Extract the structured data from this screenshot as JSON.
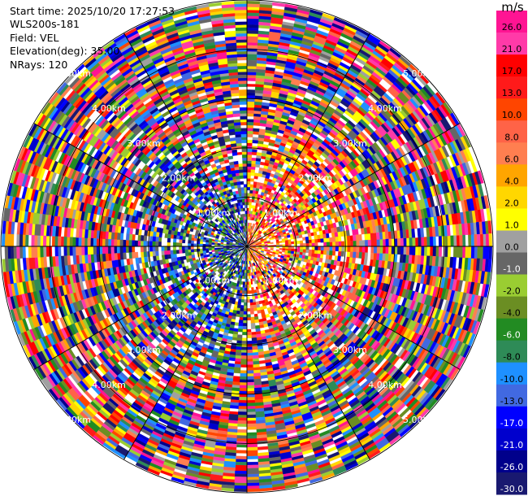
{
  "info": {
    "start_time": "Start time: 2025/10/20 17:27:53",
    "station": "WLS200s-181",
    "field": "Field: VEL",
    "elevation": "Elevation(deg): 35.00",
    "nrays": "NRays: 120"
  },
  "chart_data": {
    "type": "heatmap",
    "projection": "polar-ppi",
    "field": "VEL",
    "units": "m/s",
    "nrays": 120,
    "max_range_km": 5.0,
    "range_rings_km": [
      1.0,
      2.0,
      3.0,
      4.0,
      5.0
    ],
    "ring_labels": [
      "1.00km",
      "2.00km",
      "3.00km",
      "4.00km",
      "5.00km"
    ],
    "colorbar": {
      "title": "m/s",
      "ticks": [
        "26.0",
        "21.0",
        "17.0",
        "13.0",
        "10.0",
        "8.0",
        "6.0",
        "4.0",
        "2.0",
        "1.0",
        "0.0",
        "-1.0",
        "-2.0",
        "-4.0",
        "-6.0",
        "-8.0",
        "-10.0",
        "-13.0",
        "-17.0",
        "-21.0",
        "-26.0",
        "-30.0"
      ],
      "colors": [
        "#ff1493",
        "#ff3aa8",
        "#ff0000",
        "#ff1a1a",
        "#ff4500",
        "#ff6347",
        "#ff7f50",
        "#ffa500",
        "#ffd700",
        "#ffff00",
        "#a0a0a0",
        "#666666",
        "#9acd32",
        "#6b8e23",
        "#228b22",
        "#2e8b57",
        "#1e90ff",
        "#4169e1",
        "#0000ff",
        "#0000cd",
        "#00008b",
        "#191970"
      ]
    },
    "pattern": {
      "near_range_structure": "blue/green for azimuth 180-360 (approaching), orange/red/yellow for azimuth 0-180 (receding)",
      "far_range_structure": "noisy mixed colors beyond about 2.5km"
    }
  }
}
